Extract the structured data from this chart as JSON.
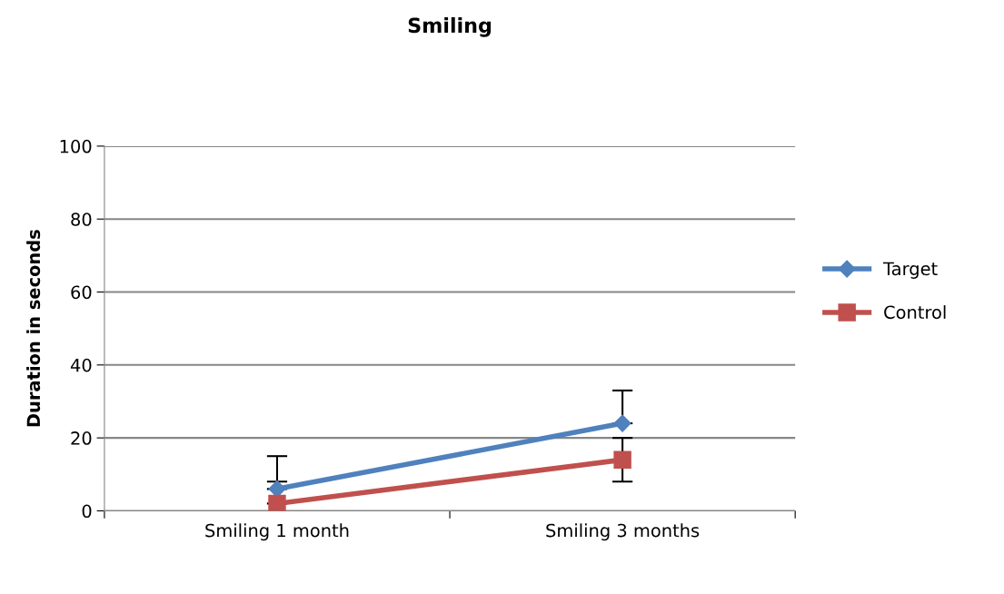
{
  "chart_data": {
    "type": "line",
    "title": "Smiling",
    "ylabel": "Duration in seconds",
    "categories": [
      "Smiling 1 month",
      "Smiling 3 months"
    ],
    "series": [
      {
        "name": "Target",
        "color": "#4f81bd",
        "marker": "diamond",
        "values": [
          6,
          24
        ],
        "errors": [
          [
            6,
            15
          ],
          [
            24,
            33
          ]
        ]
      },
      {
        "name": "Control",
        "color": "#c0504d",
        "marker": "square",
        "values": [
          2,
          14
        ],
        "errors": [
          [
            2,
            8
          ],
          [
            8,
            20
          ]
        ]
      }
    ],
    "ylim": [
      0,
      100
    ],
    "yticks": [
      0,
      20,
      40,
      60,
      80,
      100
    ],
    "grid": "y",
    "legend": "right"
  }
}
